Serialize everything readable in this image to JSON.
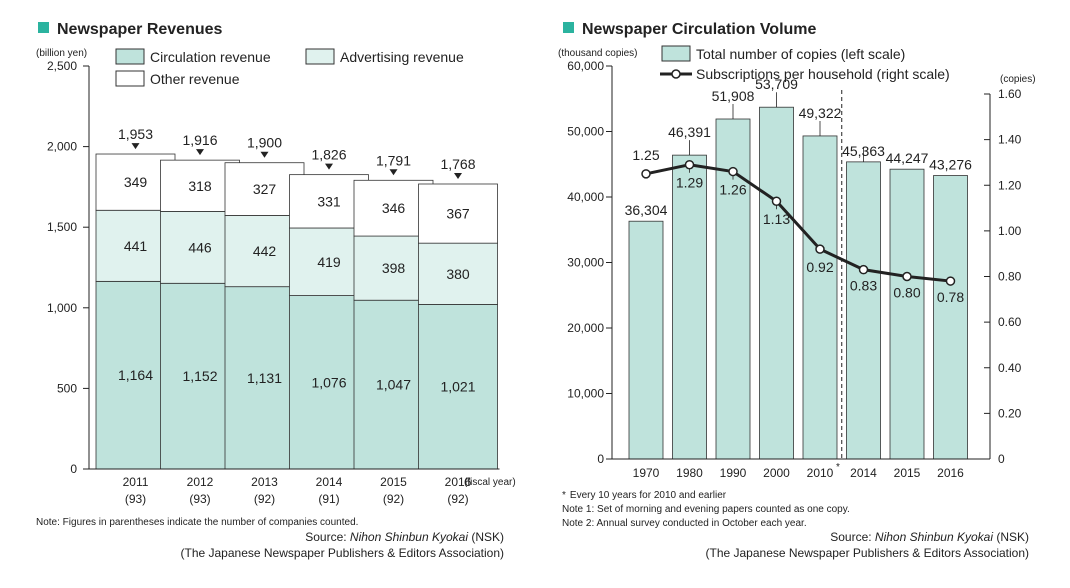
{
  "chart_data": [
    {
      "type": "bar",
      "stacked": true,
      "title": "Newspaper Revenues",
      "ylabel": "(billion yen)",
      "xlabel_suffix": "(fiscal year)",
      "ylim": [
        0,
        2500
      ],
      "yticks": [
        "0",
        "500",
        "1,000",
        "1,500",
        "2,000",
        "2,500"
      ],
      "ytick_values": [
        0,
        500,
        1000,
        1500,
        2000,
        2500
      ],
      "categories": [
        "2011",
        "2012",
        "2013",
        "2014",
        "2015",
        "2016"
      ],
      "company_counts": [
        "(93)",
        "(93)",
        "(92)",
        "(91)",
        "(92)",
        "(92)"
      ],
      "series": [
        {
          "name": "Circulation revenue",
          "values": [
            1164,
            1152,
            1131,
            1076,
            1047,
            1021
          ],
          "labels": [
            "1,164",
            "1,152",
            "1,131",
            "1,076",
            "1,047",
            "1,021"
          ],
          "color": "#bfe3dc"
        },
        {
          "name": "Advertising revenue",
          "values": [
            441,
            446,
            442,
            419,
            398,
            380
          ],
          "labels": [
            "441",
            "446",
            "442",
            "419",
            "398",
            "380"
          ],
          "color": "#e0f2ee"
        },
        {
          "name": "Other revenue",
          "values": [
            349,
            318,
            327,
            331,
            346,
            367
          ],
          "labels": [
            "349",
            "318",
            "327",
            "331",
            "346",
            "367"
          ],
          "color": "#ffffff"
        }
      ],
      "totals": [
        1953,
        1916,
        1900,
        1826,
        1791,
        1768
      ],
      "total_labels": [
        "1,953",
        "1,916",
        "1,900",
        "1,826",
        "1,791",
        "1,768"
      ],
      "note": "Note: Figures in parentheses indicate the number of companies counted.",
      "source_prefix": "Source: ",
      "source_name": "Nihon Shinbun Kyokai",
      "source_abbr": " (NSK)",
      "source_org": "(The Japanese Newspaper Publishers & Editors Association)"
    },
    {
      "type": "bar+line",
      "title": "Newspaper Circulation Volume",
      "ylabel_left": "(thousand copies)",
      "ylabel_right": "(copies)",
      "ylim_left": [
        0,
        60000
      ],
      "ylim_right": [
        0,
        1.6
      ],
      "yticks_left": [
        "0",
        "10,000",
        "20,000",
        "30,000",
        "40,000",
        "50,000",
        "60,000"
      ],
      "yticks_left_values": [
        0,
        10000,
        20000,
        30000,
        40000,
        50000,
        60000
      ],
      "yticks_right": [
        "0",
        "0.20",
        "0.40",
        "0.60",
        "0.80",
        "1.00",
        "1.20",
        "1.40",
        "1.60"
      ],
      "yticks_right_values": [
        0,
        0.2,
        0.4,
        0.6,
        0.8,
        1.0,
        1.2,
        1.4,
        1.6
      ],
      "categories": [
        "1970",
        "1980",
        "1990",
        "2000",
        "2010",
        "2014",
        "2015",
        "2016"
      ],
      "asterisk_mark": "*",
      "series": [
        {
          "name": "Total number of copies (left scale)",
          "values": [
            36304,
            46391,
            51908,
            53709,
            49322,
            45363,
            44247,
            43276
          ],
          "labels": [
            "36,304",
            "46,391",
            "51,908",
            "53,709",
            "49,322",
            "45,363",
            "44,247",
            "43,276"
          ],
          "color": "#bfe3dc"
        },
        {
          "name": "Subscriptions per household (right scale)",
          "values": [
            1.25,
            1.29,
            1.26,
            1.13,
            0.92,
            0.83,
            0.8,
            0.78
          ],
          "labels": [
            "1.25",
            "1.29",
            "1.26",
            "1.13",
            "0.92",
            "0.83",
            "0.80",
            "0.78"
          ],
          "color": "#222222"
        }
      ],
      "notes": [
        "Every 10 years for 2010 and earlier",
        "Note 1: Set of morning and evening papers counted as one copy.",
        "Note 2: Annual survey conducted in October each year."
      ],
      "source_prefix": "Source: ",
      "source_name": "Nihon Shinbun Kyokai",
      "source_abbr": " (NSK)",
      "source_org": "(The Japanese Newspaper Publishers & Editors Association)"
    }
  ]
}
